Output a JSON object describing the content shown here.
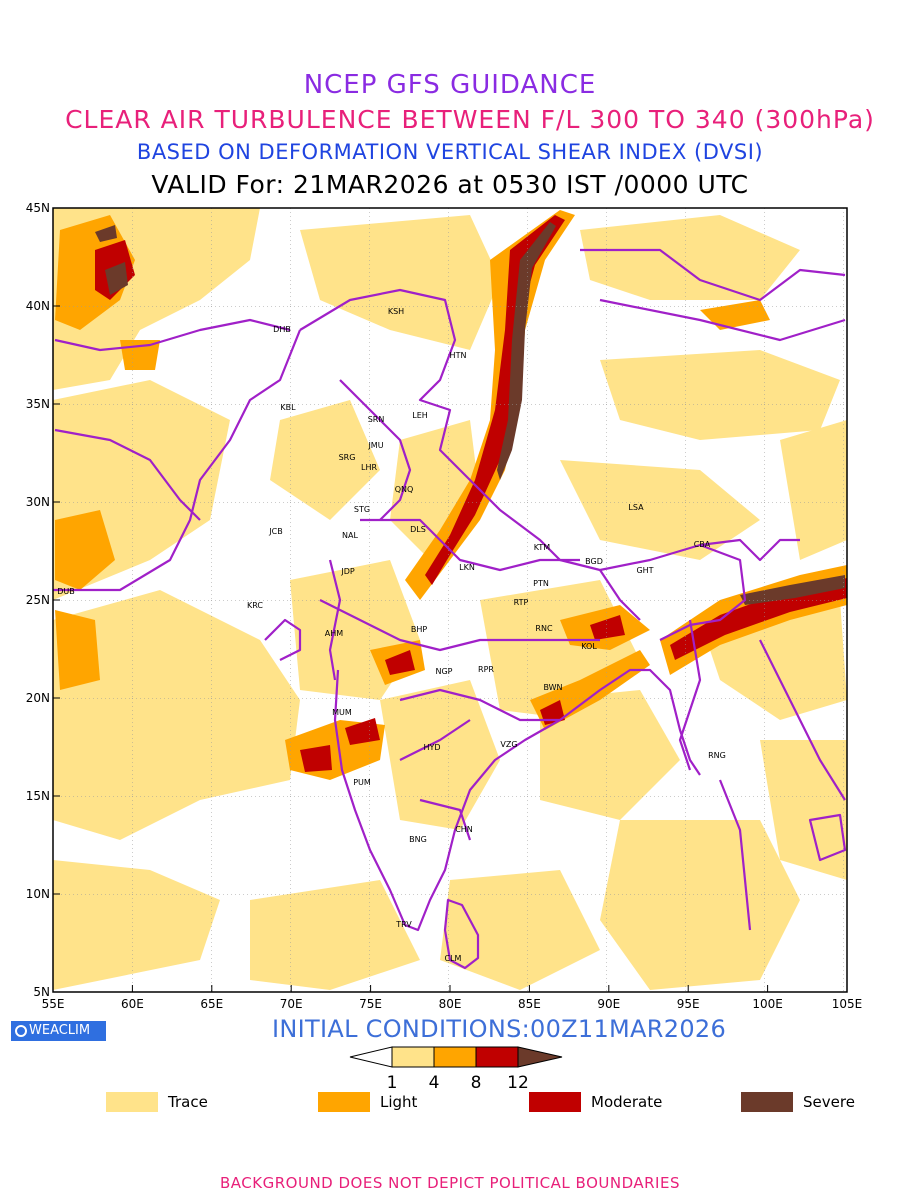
{
  "header": {
    "title": "NCEP GFS GUIDANCE",
    "subtitle": "CLEAR AIR TURBULENCE BETWEEN F/L 300 TO 340 (300hPa)",
    "method": "BASED ON DEFORMATION VERTICAL SHEAR INDEX (DVSI)",
    "valid": "VALID For: 21MAR2026 at 0530 IST /0000 UTC"
  },
  "axes": {
    "lat_labels": [
      "45N",
      "40N",
      "35N",
      "30N",
      "25N",
      "20N",
      "15N",
      "10N",
      "5N"
    ],
    "lon_labels": [
      "55E",
      "60E",
      "65E",
      "70E",
      "75E",
      "80E",
      "85E",
      "90E",
      "95E",
      "100E",
      "105E"
    ]
  },
  "stations": [
    {
      "code": "KSH"
    },
    {
      "code": "DHB"
    },
    {
      "code": "HTN"
    },
    {
      "code": "KBL"
    },
    {
      "code": "SRN"
    },
    {
      "code": "LEH"
    },
    {
      "code": "JMU"
    },
    {
      "code": "SRG"
    },
    {
      "code": "LHR"
    },
    {
      "code": "QNQ"
    },
    {
      "code": "STG"
    },
    {
      "code": "LSA"
    },
    {
      "code": "JCB"
    },
    {
      "code": "NAL"
    },
    {
      "code": "DLS"
    },
    {
      "code": "CBA"
    },
    {
      "code": "KTM"
    },
    {
      "code": "BGD"
    },
    {
      "code": "GHT"
    },
    {
      "code": "JDP"
    },
    {
      "code": "LKN"
    },
    {
      "code": "PTN"
    },
    {
      "code": "DUB"
    },
    {
      "code": "KRC"
    },
    {
      "code": "RTP"
    },
    {
      "code": "BHP"
    },
    {
      "code": "AHM"
    },
    {
      "code": "RNC"
    },
    {
      "code": "KOL"
    },
    {
      "code": "NGP"
    },
    {
      "code": "RPR"
    },
    {
      "code": "BWN"
    },
    {
      "code": "MUM"
    },
    {
      "code": "HYD"
    },
    {
      "code": "VZG"
    },
    {
      "code": "RNG"
    },
    {
      "code": "PUM"
    },
    {
      "code": "CHN"
    },
    {
      "code": "BNG"
    },
    {
      "code": "TRV"
    },
    {
      "code": "CLM"
    }
  ],
  "colorbar": {
    "ticks": [
      "1",
      "4",
      "8",
      "12"
    ],
    "colors": [
      "#ffe38a",
      "#ffa500",
      "#c00000",
      "#6b3a2a"
    ]
  },
  "legend": [
    {
      "label": "Trace",
      "color": "#ffe38a"
    },
    {
      "label": "Light",
      "color": "#ffa500"
    },
    {
      "label": "Moderate",
      "color": "#c00000"
    },
    {
      "label": "Severe",
      "color": "#6b3a2a"
    }
  ],
  "branding": {
    "name": "WEACLIM"
  },
  "initial_conditions": "INITIAL CONDITIONS:00Z11MAR2026",
  "footer": "BACKGROUND DOES NOT DEPICT POLITICAL BOUNDARIES"
}
